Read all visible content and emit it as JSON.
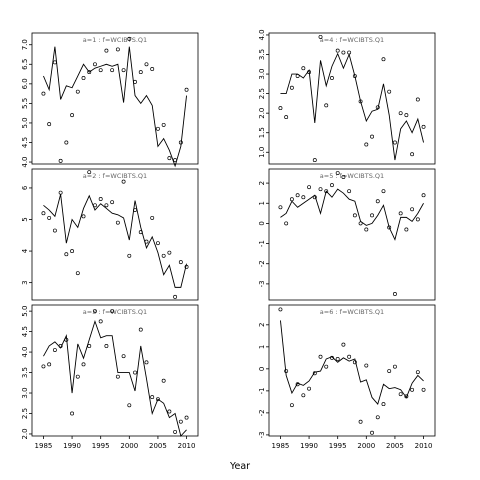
{
  "xlabel": "Year",
  "chart_data": [
    {
      "type": "scatter",
      "title": "a=1 : f=WCIBTS.Q1",
      "xlim": [
        1983,
        2012
      ],
      "ylim": [
        3.95,
        7.3
      ],
      "yticks": [
        "4.0",
        "4.5",
        "5.0",
        "5.5",
        "6.0",
        "6.5",
        "7.0"
      ],
      "xticks": [],
      "x": [
        1985,
        1986,
        1987,
        1988,
        1989,
        1990,
        1991,
        1992,
        1993,
        1994,
        1995,
        1996,
        1997,
        1998,
        1999,
        2000,
        2001,
        2002,
        2003,
        2004,
        2005,
        2006,
        2007,
        2008,
        2009,
        2010
      ],
      "observed": [
        5.75,
        4.97,
        6.55,
        4.03,
        4.5,
        5.2,
        5.8,
        6.15,
        6.3,
        6.5,
        6.35,
        6.85,
        6.35,
        6.88,
        6.35,
        7.15,
        6.05,
        6.3,
        6.5,
        6.38,
        4.85,
        4.95,
        4.1,
        4.05,
        4.5,
        5.85
      ],
      "fitted": [
        6.2,
        5.85,
        6.95,
        5.6,
        5.95,
        5.9,
        6.2,
        6.5,
        6.3,
        6.4,
        6.45,
        6.5,
        6.45,
        6.5,
        5.52,
        6.95,
        5.7,
        5.5,
        5.7,
        5.45,
        4.4,
        4.6,
        4.3,
        3.9,
        4.4,
        5.7
      ]
    },
    {
      "type": "scatter",
      "title": "a=4 : f=WCIBTS.Q1",
      "xlim": [
        1983,
        2012
      ],
      "ylim": [
        0.7,
        4.05
      ],
      "yticks": [
        "1.0",
        "1.5",
        "2.0",
        "2.5",
        "3.0",
        "3.5",
        "4.0"
      ],
      "xticks": [],
      "x": [
        1985,
        1986,
        1987,
        1988,
        1989,
        1990,
        1991,
        1992,
        1993,
        1994,
        1995,
        1996,
        1997,
        1998,
        1999,
        2000,
        2001,
        2002,
        2003,
        2004,
        2005,
        2006,
        2007,
        2008,
        2009,
        2010
      ],
      "observed": [
        2.13,
        1.9,
        2.65,
        2.95,
        3.15,
        3.05,
        0.8,
        3.95,
        2.2,
        2.9,
        3.6,
        3.55,
        3.55,
        2.95,
        2.3,
        1.2,
        1.4,
        2.15,
        3.38,
        2.55,
        1.25,
        2.0,
        1.95,
        0.95,
        2.35,
        1.65
      ],
      "fitted": [
        2.5,
        2.5,
        3.0,
        3.0,
        2.9,
        3.1,
        1.75,
        3.35,
        2.7,
        3.2,
        3.52,
        3.15,
        3.5,
        2.95,
        2.3,
        1.8,
        2.05,
        2.1,
        2.75,
        1.95,
        0.8,
        1.6,
        1.8,
        1.5,
        1.85,
        1.25
      ]
    },
    {
      "type": "scatter",
      "title": "a=2 : f=WCIBTS.Q1",
      "xlim": [
        1983,
        2012
      ],
      "ylim": [
        2.45,
        6.6
      ],
      "yticks": [
        "3",
        "4",
        "5",
        "6"
      ],
      "xticks": [],
      "x": [
        1985,
        1986,
        1987,
        1988,
        1989,
        1990,
        1991,
        1992,
        1993,
        1994,
        1995,
        1996,
        1997,
        1998,
        1999,
        2000,
        2001,
        2002,
        2003,
        2004,
        2005,
        2006,
        2007,
        2008,
        2009,
        2010
      ],
      "observed": [
        5.2,
        5.05,
        4.65,
        5.85,
        3.9,
        4.0,
        3.3,
        5.1,
        6.5,
        5.45,
        5.65,
        5.45,
        5.55,
        4.9,
        6.2,
        3.85,
        5.3,
        4.6,
        4.3,
        5.05,
        4.25,
        3.85,
        3.95,
        2.55,
        3.65,
        3.5
      ],
      "fitted": [
        5.45,
        5.3,
        5.1,
        5.8,
        4.25,
        5.0,
        4.75,
        5.35,
        5.75,
        5.3,
        5.5,
        5.35,
        5.2,
        5.15,
        5.05,
        4.35,
        5.6,
        4.75,
        4.1,
        4.45,
        3.95,
        3.25,
        3.55,
        2.85,
        2.85,
        3.6
      ]
    },
    {
      "type": "scatter",
      "title": "a=5 : f=WCIBTS.Q1",
      "xlim": [
        1983,
        2012
      ],
      "ylim": [
        -3.8,
        2.7
      ],
      "yticks": [
        "-3",
        "-2",
        "-1",
        "0",
        "1",
        "2"
      ],
      "xticks": [],
      "x": [
        1985,
        1986,
        1987,
        1988,
        1989,
        1990,
        1991,
        1992,
        1993,
        1994,
        1995,
        1996,
        1997,
        1998,
        1999,
        2000,
        2001,
        2002,
        2003,
        2004,
        2005,
        2006,
        2007,
        2008,
        2009,
        2010
      ],
      "observed": [
        0.8,
        0.0,
        1.2,
        1.4,
        1.3,
        1.8,
        1.3,
        1.7,
        1.6,
        1.9,
        2.5,
        2.3,
        1.6,
        0.4,
        0.0,
        -0.3,
        0.4,
        1.1,
        1.6,
        -0.2,
        -3.5,
        0.5,
        -0.3,
        0.7,
        0.2,
        1.4
      ],
      "fitted": [
        0.3,
        0.5,
        1.1,
        0.8,
        1.0,
        1.2,
        1.4,
        0.5,
        1.6,
        1.3,
        1.7,
        1.5,
        1.2,
        1.1,
        0.1,
        -0.1,
        0.0,
        0.4,
        0.9,
        -0.2,
        -0.8,
        0.3,
        0.3,
        0.1,
        0.5,
        1.0
      ]
    },
    {
      "type": "scatter",
      "title": "a=3 : f=WCIBTS.Q1",
      "xlim": [
        1983,
        2012
      ],
      "ylim": [
        1.95,
        5.15
      ],
      "yticks": [
        "2.0",
        "2.5",
        "3.0",
        "3.5",
        "4.0",
        "4.5",
        "5.0"
      ],
      "xticks": [
        "1985",
        "1990",
        "1995",
        "2000",
        "2005",
        "2010"
      ],
      "x": [
        1985,
        1986,
        1987,
        1988,
        1989,
        1990,
        1991,
        1992,
        1993,
        1994,
        1995,
        1996,
        1997,
        1998,
        1999,
        2000,
        2001,
        2002,
        2003,
        2004,
        2005,
        2006,
        2007,
        2008,
        2009,
        2010
      ],
      "observed": [
        3.65,
        3.7,
        4.05,
        4.15,
        4.3,
        2.5,
        3.4,
        3.7,
        4.15,
        5.0,
        4.75,
        4.15,
        5.0,
        3.4,
        3.9,
        2.7,
        3.5,
        4.55,
        3.75,
        2.9,
        2.85,
        3.3,
        2.55,
        2.05,
        2.3,
        2.4
      ],
      "fitted": [
        3.9,
        4.15,
        4.25,
        4.1,
        4.4,
        3.0,
        4.2,
        3.85,
        4.3,
        4.75,
        4.35,
        4.4,
        4.4,
        3.5,
        3.5,
        3.5,
        3.05,
        4.15,
        3.35,
        2.5,
        2.85,
        2.75,
        2.4,
        2.5,
        1.95,
        2.1
      ]
    },
    {
      "type": "scatter",
      "title": "a=6 : f=WCIBTS.Q1",
      "xlim": [
        1983,
        2012
      ],
      "ylim": [
        -3.05,
        2.9
      ],
      "yticks": [
        "-3",
        "-2",
        "-1",
        "0",
        "1",
        "2"
      ],
      "xticks": [
        "1985",
        "1990",
        "1995",
        "2000",
        "2005",
        "2010"
      ],
      "x": [
        1985,
        1986,
        1987,
        1988,
        1989,
        1990,
        1991,
        1992,
        1993,
        1994,
        1995,
        1996,
        1997,
        1998,
        1999,
        2000,
        2001,
        2002,
        2003,
        2004,
        2005,
        2006,
        2007,
        2008,
        2009,
        2010
      ],
      "observed": [
        2.7,
        -0.1,
        -1.65,
        -0.7,
        -1.2,
        -0.9,
        -0.2,
        0.55,
        0.1,
        0.5,
        0.45,
        1.1,
        0.55,
        0.3,
        -2.4,
        0.15,
        -2.9,
        -2.2,
        -1.6,
        -0.1,
        0.1,
        -1.15,
        -1.25,
        -0.95,
        -0.15,
        -0.95
      ],
      "fitted": [
        2.2,
        -0.3,
        -1.1,
        -0.65,
        -0.75,
        -0.55,
        -0.15,
        -0.1,
        0.45,
        0.55,
        0.3,
        0.5,
        0.35,
        0.45,
        -0.6,
        -0.5,
        -1.3,
        -1.6,
        -0.7,
        -0.9,
        -0.85,
        -0.95,
        -1.3,
        -0.65,
        -0.3,
        -0.55
      ]
    }
  ]
}
